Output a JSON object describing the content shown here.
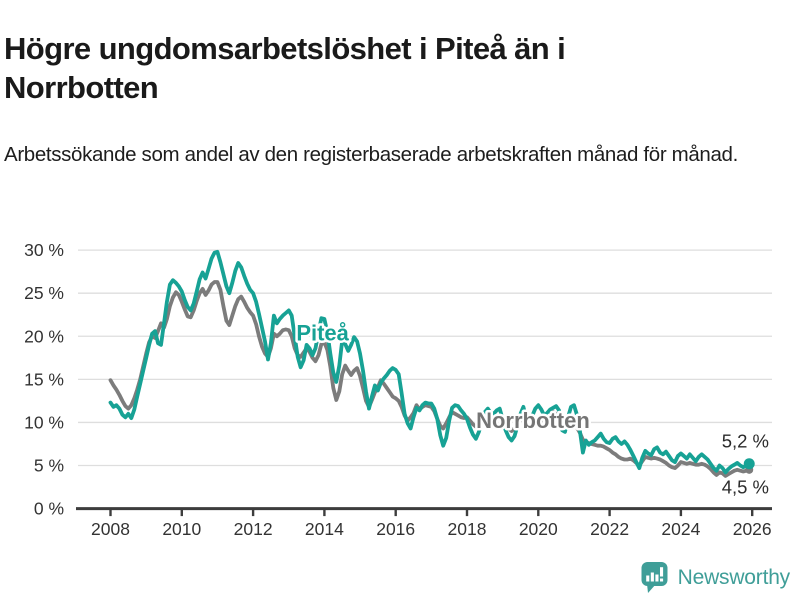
{
  "header": {
    "title": "Högre ungdomsarbetslöshet i Piteå än i Norrbotten",
    "subtitle": "Arbetssökande som andel av den registerbaserade arbetskraften månad för månad."
  },
  "footer": {
    "brand": "Newsworthy",
    "brand_color": "#3f9e98",
    "logo_icon": "newsworthy-speech-bubble-chart-icon"
  },
  "chart_data": {
    "type": "line",
    "title": "Högre ungdomsarbetslöshet i Piteå än i Norrbotten",
    "ylabel": "",
    "xlabel": "",
    "grid": true,
    "ylim": [
      0,
      30
    ],
    "x_start_year": 2008,
    "points_per_year": 12,
    "x_ticks": [
      2008,
      2010,
      2012,
      2014,
      2016,
      2018,
      2020,
      2022,
      2024,
      2026
    ],
    "y_ticks": [
      {
        "value": 0,
        "label": "0 %"
      },
      {
        "value": 5,
        "label": "5 %"
      },
      {
        "value": 10,
        "label": "10 %"
      },
      {
        "value": 15,
        "label": "15 %"
      },
      {
        "value": 20,
        "label": "20 %"
      },
      {
        "value": 25,
        "label": "25 %"
      },
      {
        "value": 30,
        "label": "30 %"
      }
    ],
    "axis_color": "#3d3d3d",
    "grid_color": "#dedede",
    "tick_text_color": "#333333",
    "series": [
      {
        "name": "Norrbotten",
        "color": "#7c7c7c",
        "label_color": "#757575",
        "label_at": {
          "x": 2019.85,
          "y": 10.2
        },
        "end_label": "4,5 %",
        "end_label_offset": 23.5,
        "end_dot_radius": 4,
        "values": [
          14.9,
          14.3,
          13.8,
          13.2,
          12.5,
          11.9,
          11.6,
          12.0,
          12.8,
          13.8,
          15.0,
          16.5,
          18.0,
          19.3,
          20.0,
          19.8,
          20.6,
          21.5,
          21.0,
          22.0,
          23.5,
          24.5,
          25.1,
          24.8,
          24.0,
          23.1,
          22.3,
          22.2,
          23.0,
          24.1,
          25.0,
          25.5,
          24.8,
          25.3,
          26.0,
          26.3,
          26.3,
          25.4,
          23.5,
          21.8,
          21.3,
          22.4,
          23.5,
          24.3,
          24.6,
          24.0,
          23.3,
          22.8,
          22.4,
          21.4,
          20.0,
          18.8,
          18.0,
          17.6,
          18.6,
          20.3,
          20.0,
          20.3,
          20.7,
          20.8,
          20.7,
          20.0,
          18.6,
          17.8,
          17.6,
          18.1,
          18.6,
          18.2,
          17.5,
          17.1,
          17.8,
          19.1,
          19.3,
          18.4,
          16.5,
          14.0,
          12.6,
          13.6,
          15.6,
          16.6,
          16.0,
          15.5,
          16.0,
          16.3,
          15.4,
          14.0,
          12.5,
          11.8,
          12.6,
          13.5,
          14.1,
          14.9,
          14.5,
          14.0,
          13.5,
          13.0,
          12.8,
          12.5,
          11.8,
          10.8,
          10.2,
          10.6,
          11.1,
          12.0,
          11.5,
          11.8,
          12.0,
          11.9,
          11.8,
          11.3,
          10.4,
          9.6,
          9.3,
          9.9,
          10.6,
          11.2,
          11.0,
          10.8,
          10.6,
          10.5,
          10.6,
          10.2,
          9.8,
          9.5,
          9.9,
          10.3,
          10.8,
          11.0,
          10.5,
          10.2,
          10.4,
          10.6,
          10.3,
          9.8,
          9.3,
          9.0,
          9.3,
          9.9,
          10.3,
          10.5,
          9.8,
          9.5,
          9.8,
          10.2,
          10.5,
          10.3,
          10.2,
          10.8,
          11.0,
          11.2,
          11.0,
          10.7,
          9.8,
          9.6,
          9.9,
          10.2,
          10.0,
          9.4,
          8.8,
          8.0,
          7.7,
          7.6,
          7.5,
          7.4,
          7.3,
          7.3,
          7.2,
          7.0,
          6.8,
          6.5,
          6.3,
          6.0,
          5.8,
          5.7,
          5.7,
          5.8,
          5.6,
          5.3,
          5.0,
          5.5,
          6.0,
          5.9,
          5.8,
          5.9,
          5.8,
          5.7,
          5.5,
          5.3,
          5.0,
          4.8,
          4.7,
          5.0,
          5.4,
          5.3,
          5.2,
          5.3,
          5.2,
          5.1,
          5.1,
          5.2,
          5.1,
          4.9,
          4.6,
          4.2,
          3.9,
          4.2,
          4.1,
          3.8,
          4.0,
          4.2,
          4.4,
          4.5,
          4.4,
          4.3,
          4.4,
          4.5
        ]
      },
      {
        "name": "Piteå",
        "color": "#17a295",
        "label_color": "#17a295",
        "label_at": {
          "x": 2013.95,
          "y": 20.4
        },
        "end_label": "5,2 %",
        "end_label_offset": -16.5,
        "end_dot_radius": 5.5,
        "values": [
          12.3,
          11.8,
          12.0,
          11.6,
          10.9,
          10.6,
          11.0,
          10.5,
          11.5,
          13.0,
          14.5,
          16.0,
          17.5,
          19.0,
          20.3,
          20.6,
          19.2,
          19.0,
          21.5,
          24.0,
          26.0,
          26.5,
          26.2,
          25.8,
          25.2,
          24.2,
          23.4,
          23.0,
          23.8,
          25.2,
          26.6,
          27.4,
          26.7,
          27.8,
          29.0,
          29.7,
          29.8,
          28.6,
          27.2,
          25.8,
          25.0,
          26.2,
          27.6,
          28.5,
          28.0,
          27.0,
          26.1,
          25.4,
          25.0,
          24.0,
          22.6,
          21.0,
          19.4,
          17.3,
          19.2,
          22.4,
          21.5,
          22.0,
          22.4,
          22.7,
          23.0,
          22.4,
          20.0,
          17.6,
          16.4,
          17.2,
          19.0,
          18.6,
          17.8,
          18.6,
          20.5,
          22.1,
          22.0,
          20.4,
          18.0,
          15.8,
          14.7,
          16.6,
          19.5,
          19.1,
          18.3,
          19.0,
          19.9,
          19.4,
          18.0,
          16.0,
          13.6,
          11.6,
          13.0,
          14.3,
          13.7,
          14.6,
          15.1,
          15.5,
          16.0,
          16.3,
          16.1,
          15.6,
          13.4,
          11.0,
          9.9,
          9.3,
          10.6,
          11.7,
          11.4,
          12.0,
          12.3,
          12.2,
          12.2,
          11.6,
          10.4,
          8.5,
          7.3,
          8.2,
          10.2,
          11.7,
          12.0,
          11.9,
          11.4,
          11.0,
          10.4,
          9.4,
          8.6,
          8.1,
          8.9,
          10.1,
          11.2,
          11.6,
          11.1,
          11.0,
          11.4,
          11.6,
          10.4,
          9.1,
          8.3,
          7.9,
          8.4,
          9.6,
          11.0,
          11.8,
          10.4,
          9.6,
          10.8,
          11.6,
          12.0,
          11.5,
          10.8,
          11.1,
          11.5,
          11.7,
          11.9,
          11.4,
          9.1,
          8.9,
          10.6,
          11.8,
          12.0,
          10.9,
          9.0,
          6.5,
          7.9,
          7.4,
          7.7,
          7.9,
          8.3,
          8.7,
          8.1,
          7.7,
          7.6,
          8.1,
          8.3,
          7.8,
          7.5,
          7.8,
          7.4,
          6.8,
          6.1,
          5.4,
          4.7,
          5.9,
          6.7,
          6.4,
          6.2,
          6.9,
          7.1,
          6.5,
          6.3,
          6.6,
          6.1,
          5.6,
          5.4,
          6.1,
          6.4,
          6.1,
          5.8,
          6.3,
          5.9,
          5.5,
          6.0,
          6.3,
          6.0,
          5.7,
          5.2,
          4.7,
          4.4,
          5.0,
          4.7,
          4.2,
          4.6,
          4.9,
          5.1,
          5.3,
          5.0,
          4.8,
          5.0,
          5.2
        ]
      }
    ]
  }
}
